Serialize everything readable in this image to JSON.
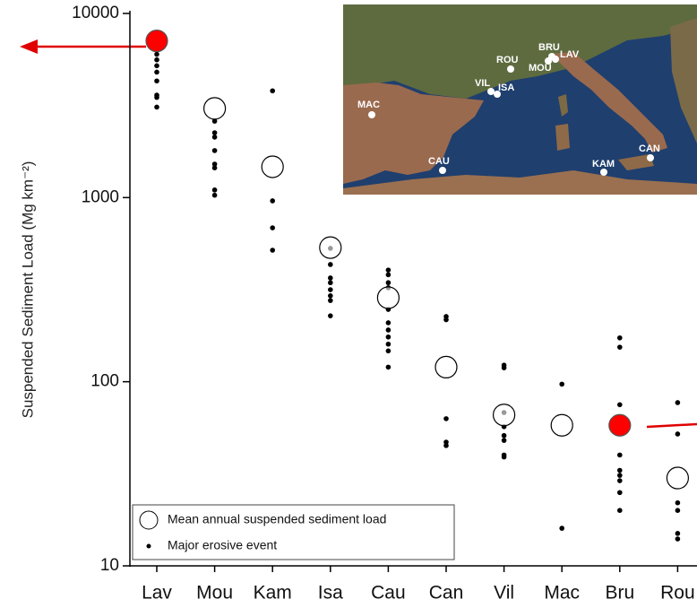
{
  "chart_data": {
    "type": "scatter",
    "y_label": "Suspended Sediment Load (Mg km⁻²)",
    "log_y": true,
    "categories": [
      "Lav",
      "Mou",
      "Kam",
      "Isa",
      "Cau",
      "Can",
      "Vil",
      "Mac",
      "Bru",
      "Rou"
    ],
    "ylim": [
      10,
      10000
    ],
    "yticks": [
      10,
      100,
      1000,
      10000
    ],
    "series": [
      {
        "name": "Mean annual suspended sediment load",
        "color": "#ffffff",
        "colors": [
          "#ff0000",
          "#ffffff",
          "#ffffff",
          "#ffffff",
          "#ffffff",
          "#ffffff",
          "#ffffff",
          "#ffffff",
          "#ff0000",
          "#ffffff"
        ],
        "values": [
          7100,
          3050,
          1470,
          535,
          286,
          120,
          66,
          58,
          58,
          30
        ]
      },
      {
        "name": "Major erosive event",
        "color": "#000000",
        "values": [
          [
            6000,
            5600,
            5200,
            4800,
            4300,
            3600,
            3500,
            3100
          ],
          [
            2600,
            2250,
            2130,
            1800,
            1520,
            1450,
            1100,
            1030
          ],
          [
            3800,
            960,
            685,
            518
          ],
          [
            530,
            433,
            366,
            345,
            316,
            293,
            276,
            228
          ],
          [
            404,
            381,
            345,
            324,
            247,
            209,
            191,
            175,
            160,
            147,
            120
          ],
          [
            226,
            217,
            63,
            47,
            45
          ],
          [
            123,
            119,
            68,
            57,
            51,
            48,
            40,
            39
          ],
          [
            97,
            16
          ],
          [
            173,
            154,
            75,
            40,
            33,
            31,
            29,
            25,
            20
          ],
          [
            77,
            52,
            22,
            20,
            15,
            14
          ]
        ]
      }
    ],
    "inset_labels": [
      "MAC",
      "CAU",
      "VIL",
      "ISA",
      "ROU",
      "BRU",
      "MOU",
      "LAV",
      "KAM",
      "CAN"
    ]
  }
}
